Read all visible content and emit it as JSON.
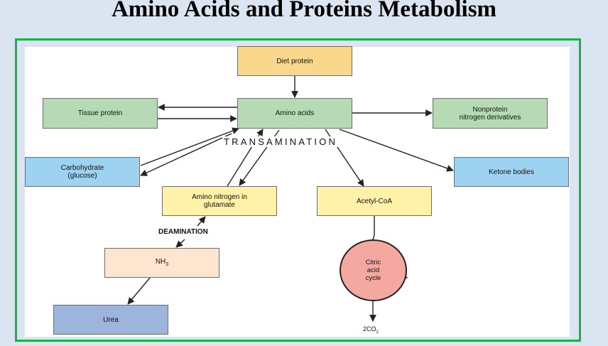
{
  "title": "Amino Acids and Proteins Metabolism",
  "nodes": {
    "diet_protein": "Diet protein",
    "amino_acids": "Amino acids",
    "tissue_protein": "Tissue protein",
    "nonprotein_line1": "Nonprotein",
    "nonprotein_line2": "nitrogen derivatives",
    "carbohydrate_line1": "Carbohydrate",
    "carbohydrate_line2": "(glucose)",
    "ketone_bodies": "Ketone bodies",
    "amino_nitrogen_line1": "Amino nitrogen in",
    "amino_nitrogen_line2": "glutamate",
    "acetyl_coa": "Acetyl-CoA",
    "nh3_base": "NH",
    "nh3_sub": "3",
    "urea": "Urea",
    "citric_line1": "Citric",
    "citric_line2": "acid",
    "citric_line3": "cycle",
    "co2_prefix": "2CO",
    "co2_sub": "2"
  },
  "labels": {
    "transamination": "TRANSAMINATION",
    "deamination": "DEAMINATION"
  },
  "colors": {
    "frame_border": "#1fb04a",
    "diet_protein": "#fbd78b",
    "green_boxes": "#b6dbb4",
    "blue_boxes": "#9dd3f0",
    "yellow_boxes": "#fdf2a8",
    "nh3": "#fde5d0",
    "urea": "#9db4dc",
    "citric_acid_cycle": "#f4a8a0"
  }
}
